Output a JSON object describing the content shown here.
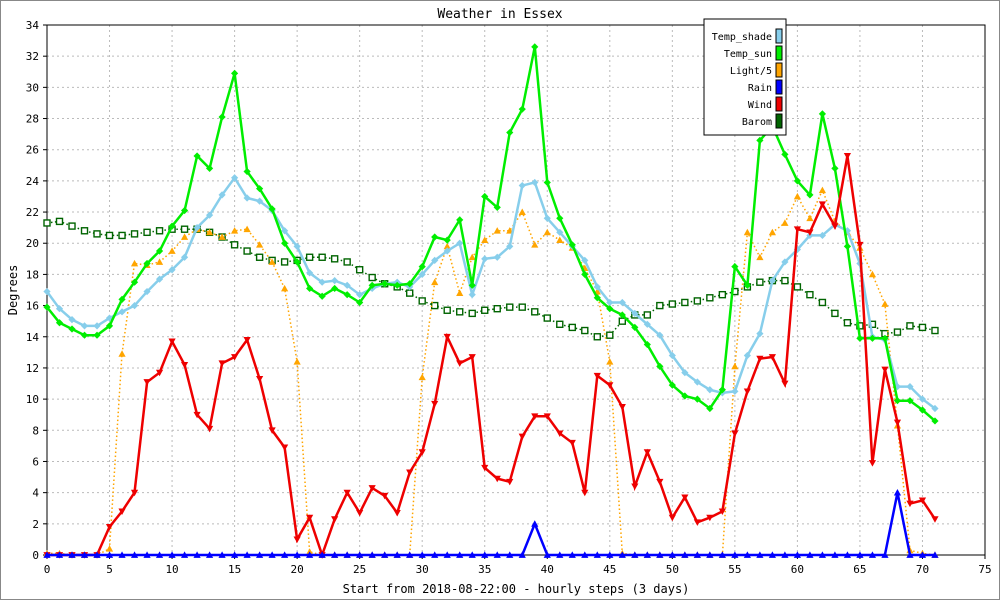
{
  "chart_data": {
    "type": "line",
    "title": "Weather in Essex",
    "xlabel": "Start from 2018-08-22:00 - hourly steps (3 days)",
    "ylabel": "Degrees",
    "xlim": [
      0,
      75
    ],
    "ylim": [
      0,
      34
    ],
    "xticks": [
      0,
      5,
      10,
      15,
      20,
      25,
      30,
      35,
      40,
      45,
      50,
      55,
      60,
      65,
      70,
      75
    ],
    "yticks": [
      0,
      2,
      4,
      6,
      8,
      10,
      12,
      14,
      16,
      18,
      20,
      22,
      24,
      26,
      28,
      30,
      32,
      34
    ],
    "grid": true,
    "legend_position": "top-right",
    "x": [
      0,
      1,
      2,
      3,
      4,
      5,
      6,
      7,
      8,
      9,
      10,
      11,
      12,
      13,
      14,
      15,
      16,
      17,
      18,
      19,
      20,
      21,
      22,
      23,
      24,
      25,
      26,
      27,
      28,
      29,
      30,
      31,
      32,
      33,
      34,
      35,
      36,
      37,
      38,
      39,
      40,
      41,
      42,
      43,
      44,
      45,
      46,
      47,
      48,
      49,
      50,
      51,
      52,
      53,
      54,
      55,
      56,
      57,
      58,
      59,
      60,
      61,
      62,
      63,
      64,
      65,
      66,
      67,
      68,
      69,
      70,
      71
    ],
    "series": [
      {
        "name": "Temp_shade",
        "color": "#87ceeb",
        "line_style": "solid",
        "marker": "diamond",
        "values": [
          16.9,
          15.8,
          15.1,
          14.7,
          14.7,
          15.2,
          15.6,
          16.0,
          16.9,
          17.7,
          18.3,
          19.1,
          21.0,
          21.8,
          23.1,
          24.2,
          22.9,
          22.7,
          22.1,
          20.8,
          19.8,
          18.1,
          17.5,
          17.6,
          17.3,
          16.7,
          17.1,
          17.4,
          17.5,
          17.2,
          18.0,
          18.9,
          19.5,
          20.0,
          16.7,
          19.0,
          19.1,
          19.8,
          23.7,
          23.9,
          21.6,
          20.7,
          19.8,
          18.9,
          17.2,
          16.2,
          16.2,
          15.5,
          14.8,
          14.1,
          12.8,
          11.7,
          11.1,
          10.6,
          10.4,
          10.5,
          12.8,
          14.2,
          17.6,
          18.8,
          19.6,
          20.5,
          20.5,
          21.2,
          20.8,
          18.7,
          14.0,
          13.8,
          10.8,
          10.8,
          10.0,
          9.4
        ]
      },
      {
        "name": "Temp_sun",
        "color": "#00ee00",
        "line_style": "solid",
        "marker": "diamond",
        "values": [
          15.9,
          14.9,
          14.5,
          14.1,
          14.1,
          14.7,
          16.4,
          17.5,
          18.7,
          19.5,
          21.1,
          22.1,
          25.6,
          24.8,
          28.1,
          30.9,
          24.6,
          23.5,
          22.2,
          20.0,
          18.8,
          17.1,
          16.6,
          17.1,
          16.7,
          16.2,
          17.3,
          17.4,
          17.3,
          17.4,
          18.5,
          20.4,
          20.2,
          21.5,
          17.3,
          23.0,
          22.3,
          27.1,
          28.6,
          32.6,
          23.9,
          21.6,
          19.9,
          18.0,
          16.5,
          15.8,
          15.4,
          14.6,
          13.5,
          12.1,
          10.9,
          10.2,
          10.0,
          9.4,
          10.6,
          18.5,
          17.3,
          26.6,
          27.5,
          25.7,
          24.0,
          23.1,
          28.3,
          24.8,
          19.8,
          13.9,
          13.9,
          13.9,
          9.9,
          9.9,
          9.3,
          8.6
        ]
      },
      {
        "name": "Light/5",
        "color": "#ffa500",
        "line_style": "dotted",
        "marker": "triangle-up",
        "values": [
          0.1,
          0.1,
          0.0,
          0.0,
          0.0,
          0.4,
          12.9,
          18.7,
          18.6,
          18.8,
          19.5,
          20.4,
          20.9,
          20.7,
          20.4,
          20.8,
          20.9,
          19.9,
          18.8,
          17.1,
          12.4,
          0.2,
          0.0,
          0.0,
          0.0,
          0.0,
          0.0,
          0.0,
          0.0,
          0.0,
          11.4,
          17.5,
          19.8,
          16.8,
          19.1,
          20.2,
          20.8,
          20.8,
          22.0,
          19.9,
          20.7,
          20.2,
          19.7,
          18.4,
          16.9,
          12.4,
          0.1,
          0.0,
          0.0,
          0.0,
          0.0,
          0.0,
          0.0,
          0.0,
          0.0,
          12.1,
          20.7,
          19.1,
          20.7,
          21.3,
          23.0,
          21.6,
          23.4,
          21.4,
          20.7,
          19.7,
          18.0,
          16.1,
          8.3,
          0.3,
          0.1,
          0.0
        ]
      },
      {
        "name": "Rain",
        "color": "#0000ff",
        "line_style": "solid",
        "marker": "triangle-up",
        "values": [
          0,
          0,
          0,
          0,
          0,
          0,
          0,
          0,
          0,
          0,
          0,
          0,
          0,
          0,
          0,
          0,
          0,
          0,
          0,
          0,
          0,
          0,
          0,
          0,
          0,
          0,
          0,
          0,
          0,
          0,
          0,
          0,
          0,
          0,
          0,
          0,
          0,
          0,
          0,
          2.0,
          0,
          0,
          0,
          0,
          0,
          0,
          0,
          0,
          0,
          0,
          0,
          0,
          0,
          0,
          0,
          0,
          0,
          0,
          0,
          0,
          0,
          0,
          0,
          0,
          0,
          0,
          0,
          0,
          4.0,
          0,
          0,
          0
        ]
      },
      {
        "name": "Wind",
        "color": "#ee0000",
        "line_style": "solid",
        "marker": "triangle-down",
        "values": [
          0.0,
          0.0,
          0.0,
          0.0,
          0.0,
          1.8,
          2.8,
          4.0,
          11.1,
          11.7,
          13.7,
          12.2,
          9.0,
          8.1,
          12.3,
          12.7,
          13.8,
          11.3,
          8.0,
          6.9,
          1.0,
          2.4,
          0.0,
          2.3,
          4.0,
          2.7,
          4.3,
          3.8,
          2.7,
          5.3,
          6.6,
          9.7,
          14.0,
          12.3,
          12.7,
          5.6,
          4.9,
          4.7,
          7.6,
          8.9,
          8.9,
          7.8,
          7.2,
          4.0,
          11.5,
          10.9,
          9.5,
          4.4,
          6.6,
          4.7,
          2.4,
          3.7,
          2.1,
          2.4,
          2.8,
          7.8,
          10.5,
          12.6,
          12.7,
          11.0,
          20.9,
          20.7,
          22.5,
          21.1,
          25.6,
          19.9,
          5.9,
          11.9,
          8.5,
          3.3,
          3.5,
          2.3
        ]
      },
      {
        "name": "Barom",
        "color": "#006400",
        "line_style": "dotted",
        "marker": "square-open",
        "values": [
          21.3,
          21.4,
          21.1,
          20.8,
          20.6,
          20.5,
          20.5,
          20.6,
          20.7,
          20.8,
          20.9,
          20.9,
          20.9,
          20.7,
          20.4,
          19.9,
          19.5,
          19.1,
          18.9,
          18.8,
          18.9,
          19.1,
          19.1,
          19.0,
          18.8,
          18.3,
          17.8,
          17.4,
          17.2,
          16.8,
          16.3,
          16.0,
          15.7,
          15.6,
          15.5,
          15.7,
          15.8,
          15.9,
          15.9,
          15.6,
          15.2,
          14.8,
          14.6,
          14.4,
          14.0,
          14.1,
          15.0,
          15.4,
          15.4,
          16.0,
          16.1,
          16.2,
          16.3,
          16.5,
          16.7,
          16.9,
          17.2,
          17.5,
          17.6,
          17.6,
          17.2,
          16.7,
          16.2,
          15.5,
          14.9,
          14.7,
          14.8,
          14.2,
          14.3,
          14.7,
          14.6,
          14.4
        ]
      }
    ]
  }
}
